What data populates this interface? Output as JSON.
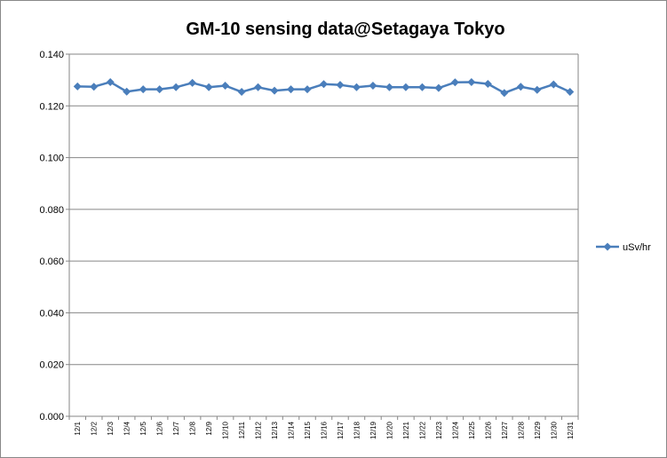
{
  "chart_data": {
    "type": "line",
    "title": "GM-10 sensing data@Setagaya Tokyo",
    "xlabel": "",
    "ylabel": "",
    "categories": [
      "12/1",
      "12/2",
      "12/3",
      "12/4",
      "12/5",
      "12/6",
      "12/7",
      "12/8",
      "12/9",
      "12/10",
      "12/11",
      "12/12",
      "12/13",
      "12/14",
      "12/15",
      "12/16",
      "12/17",
      "12/18",
      "12/19",
      "12/20",
      "12/21",
      "12/22",
      "12/23",
      "12/24",
      "12/25",
      "12/26",
      "12/27",
      "12/28",
      "12/29",
      "12/30",
      "12/31"
    ],
    "series": [
      {
        "name": "uSv/hr",
        "color": "#4a7ebb",
        "marker": "diamond",
        "values": [
          0.1275,
          0.1274,
          0.1292,
          0.1255,
          0.1264,
          0.1264,
          0.1272,
          0.1289,
          0.1272,
          0.1278,
          0.1254,
          0.1272,
          0.1259,
          0.1264,
          0.1264,
          0.1284,
          0.1281,
          0.1272,
          0.1278,
          0.1272,
          0.1272,
          0.1272,
          0.1269,
          0.1291,
          0.1292,
          0.1285,
          0.125,
          0.1274,
          0.1262,
          0.1283,
          0.1254
        ]
      }
    ],
    "ylim": [
      0,
      0.14
    ],
    "yticks": [
      "0.000",
      "0.020",
      "0.040",
      "0.060",
      "0.080",
      "0.100",
      "0.120",
      "0.140"
    ],
    "grid": true,
    "legend_position": "right"
  }
}
